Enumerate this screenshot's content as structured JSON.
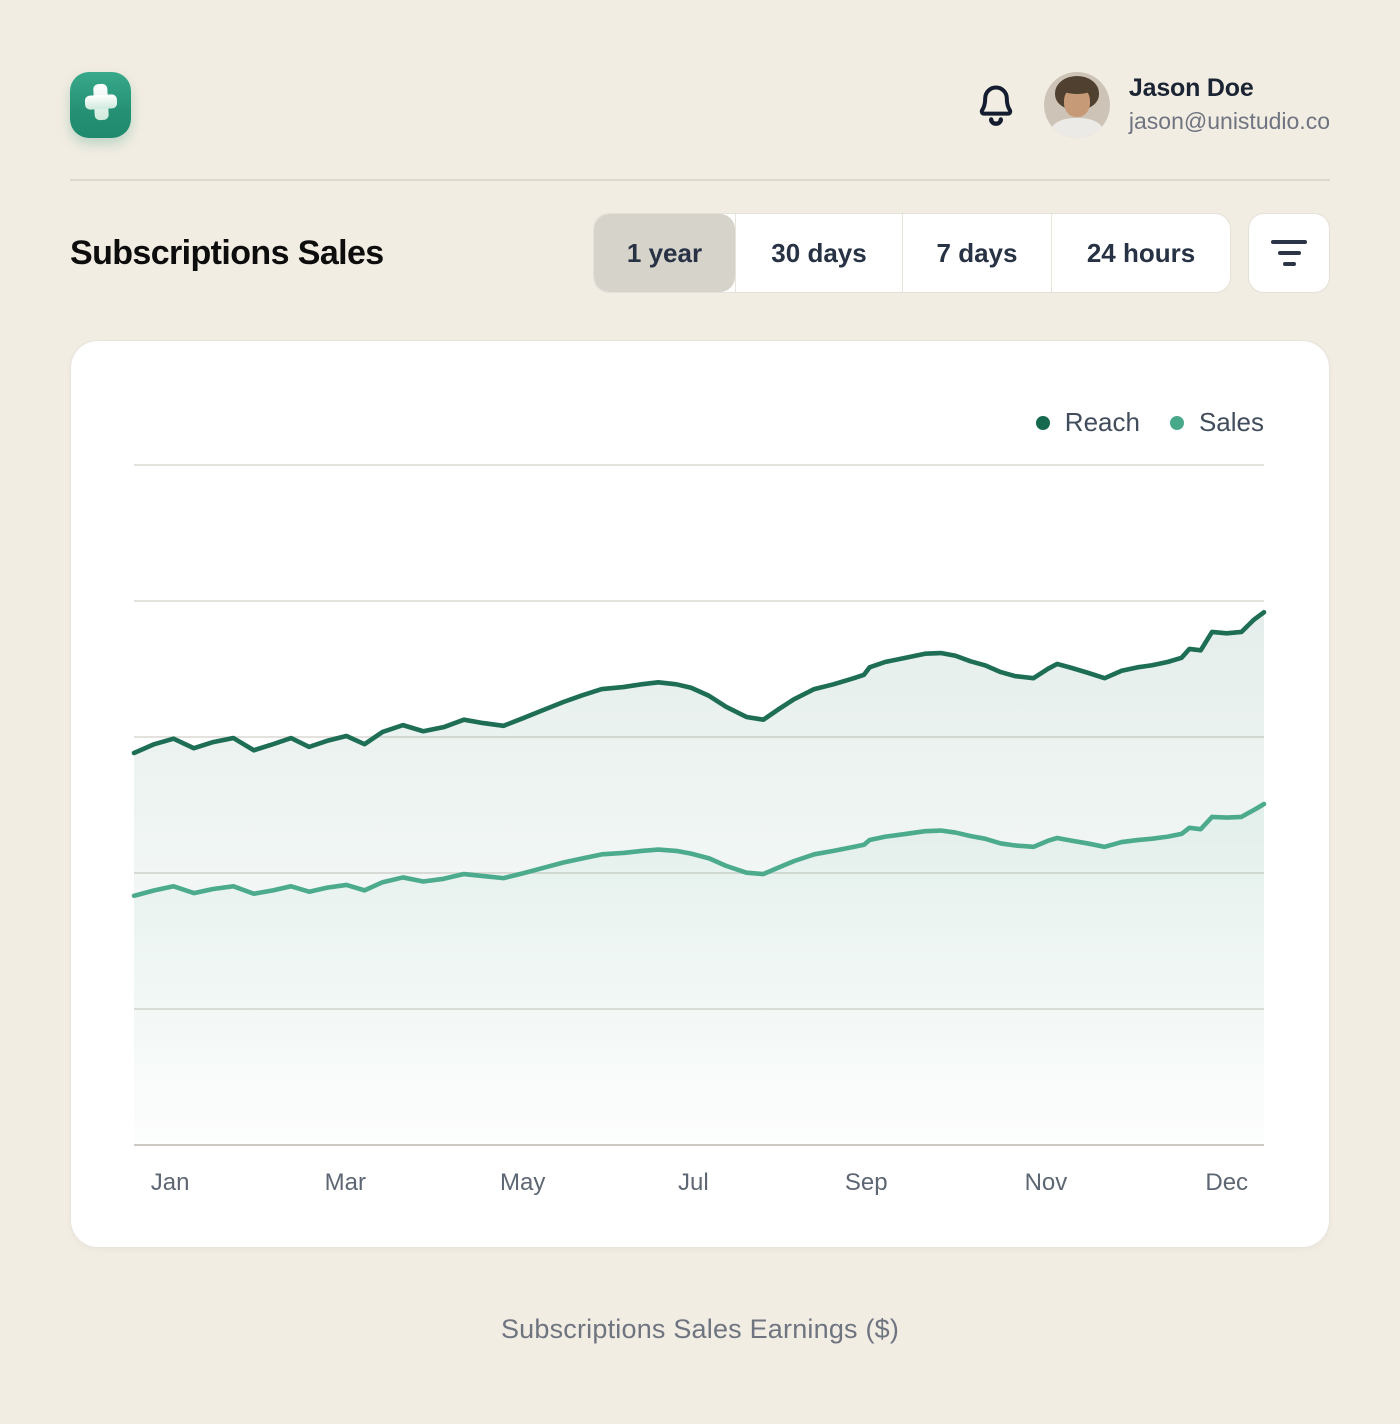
{
  "theme": {
    "page_bg": "#f2ede3",
    "card_bg": "#ffffff",
    "accent_dark_green": "#1d6e54",
    "accent_light_green": "#4dab8d",
    "selected_tab_bg": "#d6d3cb"
  },
  "header": {
    "logo_icon": "plus-logo-icon",
    "notification_icon": "bell-icon",
    "user_name": "Jason Doe",
    "user_email": "jason@unistudio.co"
  },
  "controls": {
    "title": "Subscriptions Sales",
    "ranges": [
      {
        "label": "1 year",
        "selected": true
      },
      {
        "label": "30 days",
        "selected": false
      },
      {
        "label": "7 days",
        "selected": false
      },
      {
        "label": "24 hours",
        "selected": false
      }
    ],
    "filter_icon": "filter-lines-icon"
  },
  "chart_data": {
    "type": "area",
    "title": "Subscriptions Sales Earnings ($)",
    "xlabel": "",
    "ylabel": "",
    "y_tick_labels": [],
    "x_tick_labels": [
      "Jan",
      "Mar",
      "May",
      "Jul",
      "Sep",
      "Nov",
      "Dec"
    ],
    "x_tick_pos_pct": [
      3.2,
      18.7,
      34.4,
      49.5,
      64.8,
      80.7,
      96.7
    ],
    "gridline_values_pct": [
      100,
      80,
      60,
      40,
      20,
      0
    ],
    "grid": true,
    "legend_position": "top-right",
    "legend": [
      {
        "name": "Reach",
        "color": "#16684f"
      },
      {
        "name": "Sales",
        "color": "#48a98a"
      }
    ],
    "series": [
      {
        "name": "Reach",
        "color": "#1d6e54",
        "points": [
          [
            0,
            57.5
          ],
          [
            1.8,
            58.8
          ],
          [
            3.5,
            59.6
          ],
          [
            5.3,
            58.2
          ],
          [
            7,
            59.1
          ],
          [
            8.8,
            59.7
          ],
          [
            10.6,
            57.9
          ],
          [
            12.3,
            58.8
          ],
          [
            13.9,
            59.7
          ],
          [
            15.5,
            58.4
          ],
          [
            17.1,
            59.3
          ],
          [
            18.8,
            60
          ],
          [
            20.4,
            58.8
          ],
          [
            22,
            60.6
          ],
          [
            23.8,
            61.6
          ],
          [
            25.6,
            60.7
          ],
          [
            27.4,
            61.3
          ],
          [
            29.2,
            62.4
          ],
          [
            30.9,
            61.9
          ],
          [
            32.7,
            61.5
          ],
          [
            34.4,
            62.6
          ],
          [
            36.2,
            63.8
          ],
          [
            38,
            65
          ],
          [
            39.7,
            66
          ],
          [
            41.4,
            66.9
          ],
          [
            43.3,
            67.2
          ],
          [
            44.9,
            67.6
          ],
          [
            46.4,
            67.9
          ],
          [
            48,
            67.6
          ],
          [
            49.3,
            67.1
          ],
          [
            50.9,
            65.9
          ],
          [
            52.4,
            64.3
          ],
          [
            54.2,
            62.8
          ],
          [
            55.7,
            62.4
          ],
          [
            57.1,
            64
          ],
          [
            58.4,
            65.4
          ],
          [
            60.2,
            66.9
          ],
          [
            61.9,
            67.6
          ],
          [
            63.7,
            68.5
          ],
          [
            64.6,
            69
          ],
          [
            65.1,
            70.1
          ],
          [
            66.5,
            70.9
          ],
          [
            68.3,
            71.5
          ],
          [
            70,
            72.1
          ],
          [
            71.4,
            72.2
          ],
          [
            72.7,
            71.8
          ],
          [
            74,
            71
          ],
          [
            75.3,
            70.4
          ],
          [
            76.7,
            69.4
          ],
          [
            78,
            68.8
          ],
          [
            79.6,
            68.5
          ],
          [
            80.9,
            69.9
          ],
          [
            81.7,
            70.6
          ],
          [
            83,
            70
          ],
          [
            84.4,
            69.3
          ],
          [
            85.9,
            68.5
          ],
          [
            87.4,
            69.6
          ],
          [
            88.8,
            70.1
          ],
          [
            90.1,
            70.4
          ],
          [
            91.5,
            70.9
          ],
          [
            92.7,
            71.5
          ],
          [
            93.4,
            72.8
          ],
          [
            94.4,
            72.6
          ],
          [
            95.4,
            75.3
          ],
          [
            96.7,
            75.1
          ],
          [
            98,
            75.3
          ],
          [
            99.1,
            77.1
          ],
          [
            100,
            78.2
          ]
        ]
      },
      {
        "name": "Sales",
        "color": "#4dab8d",
        "points": [
          [
            0,
            36.5
          ],
          [
            1.8,
            37.3
          ],
          [
            3.5,
            37.9
          ],
          [
            5.3,
            36.9
          ],
          [
            7,
            37.5
          ],
          [
            8.8,
            37.9
          ],
          [
            10.6,
            36.8
          ],
          [
            12.3,
            37.3
          ],
          [
            13.9,
            37.9
          ],
          [
            15.5,
            37.1
          ],
          [
            17.1,
            37.7
          ],
          [
            18.8,
            38.1
          ],
          [
            20.4,
            37.3
          ],
          [
            22,
            38.5
          ],
          [
            23.8,
            39.2
          ],
          [
            25.6,
            38.6
          ],
          [
            27.4,
            39
          ],
          [
            29.2,
            39.7
          ],
          [
            30.9,
            39.4
          ],
          [
            32.7,
            39.1
          ],
          [
            34.4,
            39.8
          ],
          [
            36.2,
            40.6
          ],
          [
            38,
            41.4
          ],
          [
            39.7,
            42
          ],
          [
            41.4,
            42.6
          ],
          [
            43.3,
            42.8
          ],
          [
            44.9,
            43.1
          ],
          [
            46.4,
            43.3
          ],
          [
            48,
            43.1
          ],
          [
            49.3,
            42.7
          ],
          [
            50.9,
            42
          ],
          [
            52.4,
            40.9
          ],
          [
            54.2,
            39.9
          ],
          [
            55.7,
            39.7
          ],
          [
            57.1,
            40.7
          ],
          [
            58.4,
            41.6
          ],
          [
            60.2,
            42.6
          ],
          [
            61.9,
            43.1
          ],
          [
            63.7,
            43.7
          ],
          [
            64.6,
            44
          ],
          [
            65.1,
            44.7
          ],
          [
            66.5,
            45.2
          ],
          [
            68.3,
            45.6
          ],
          [
            70,
            46
          ],
          [
            71.4,
            46.1
          ],
          [
            72.7,
            45.8
          ],
          [
            74,
            45.3
          ],
          [
            75.3,
            44.9
          ],
          [
            76.7,
            44.2
          ],
          [
            78,
            43.9
          ],
          [
            79.6,
            43.7
          ],
          [
            80.9,
            44.6
          ],
          [
            81.7,
            45
          ],
          [
            83,
            44.6
          ],
          [
            84.4,
            44.2
          ],
          [
            85.9,
            43.7
          ],
          [
            87.4,
            44.4
          ],
          [
            88.8,
            44.7
          ],
          [
            90.1,
            44.9
          ],
          [
            91.5,
            45.2
          ],
          [
            92.7,
            45.6
          ],
          [
            93.4,
            46.5
          ],
          [
            94.4,
            46.3
          ],
          [
            95.4,
            48.1
          ],
          [
            96.7,
            48
          ],
          [
            98,
            48.1
          ],
          [
            99.3,
            49.3
          ],
          [
            100,
            50
          ]
        ]
      }
    ]
  },
  "caption": "Subscriptions Sales Earnings ($)"
}
